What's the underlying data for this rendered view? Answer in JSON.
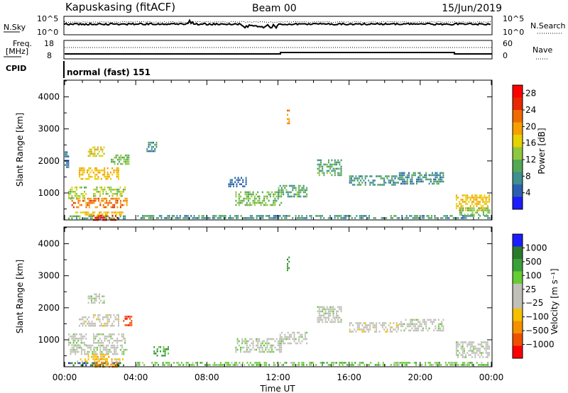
{
  "header": {
    "station": "Kapuskasing (fitACF)",
    "beam": "Beam 00",
    "date": "15/Jun/2019"
  },
  "panels": {
    "nsky_label": "N.Sky",
    "nsky_ticks": [
      "10^5",
      "10^0"
    ],
    "nsearch_label": "N.Search",
    "nsearch_ticks": [
      "10^5",
      "10^0"
    ],
    "freq_label": "Freq.",
    "freq_unit": "[MHz]",
    "freq_ticks": [
      "18",
      "8"
    ],
    "nave_label": "Nave",
    "nave_ticks": [
      "60",
      "0"
    ],
    "cpid_label": "CPID",
    "cpid_value": "normal (fast) 151"
  },
  "chart_data": [
    {
      "type": "heatmap",
      "quantity": "Power",
      "ylabel": "Slant Range [km]",
      "xlabel": "Time UT",
      "x_ticks": [
        "00:00",
        "04:00",
        "08:00",
        "12:00",
        "16:00",
        "20:00",
        "00:00"
      ],
      "x_range_hours": [
        0,
        24
      ],
      "ylim": [
        180,
        4500
      ],
      "y_ticks": [
        1000,
        2000,
        3000,
        4000
      ],
      "colorbar": {
        "label": "Power [dB]",
        "ticks": [
          "4",
          "8",
          "12",
          "16",
          "20",
          "24",
          "28"
        ],
        "range": [
          0,
          30
        ],
        "colors": [
          "#1c1cff",
          "#2d5fb0",
          "#3e8f8f",
          "#54a854",
          "#8fc840",
          "#e6d200",
          "#f5a000",
          "#f06a00",
          "#e82800",
          "#ff0000"
        ]
      },
      "regions": [
        {
          "t0": 0.2,
          "t1": 3.4,
          "r0": 180,
          "r1": 300,
          "v": 10
        },
        {
          "t0": 4.0,
          "t1": 23.9,
          "r0": 180,
          "r1": 310,
          "v": 8
        },
        {
          "t0": 1.6,
          "t1": 3.0,
          "r0": 180,
          "r1": 320,
          "v": 28
        },
        {
          "t0": 0.6,
          "t1": 3.3,
          "r0": 300,
          "r1": 420,
          "v": 18
        },
        {
          "t0": 0.3,
          "t1": 3.5,
          "r0": 550,
          "r1": 850,
          "v": 22
        },
        {
          "t0": 0.2,
          "t1": 1.2,
          "r0": 850,
          "r1": 1200,
          "v": 14
        },
        {
          "t0": 1.6,
          "t1": 3.4,
          "r0": 900,
          "r1": 1200,
          "v": 14
        },
        {
          "t0": 0.8,
          "t1": 3.0,
          "r0": 1450,
          "r1": 1800,
          "v": 18
        },
        {
          "t0": 1.3,
          "t1": 2.2,
          "r0": 2150,
          "r1": 2450,
          "v": 16
        },
        {
          "t0": 2.6,
          "t1": 3.6,
          "r0": 1900,
          "r1": 2200,
          "v": 12
        },
        {
          "t0": 0.0,
          "t1": 0.2,
          "r0": 1800,
          "r1": 2300,
          "v": 6
        },
        {
          "t0": 4.6,
          "t1": 5.2,
          "r0": 2300,
          "r1": 2600,
          "v": 8
        },
        {
          "t0": 9.6,
          "t1": 12.2,
          "r0": 650,
          "r1": 1050,
          "v": 12
        },
        {
          "t0": 12.0,
          "t1": 13.6,
          "r0": 900,
          "r1": 1250,
          "v": 10
        },
        {
          "t0": 14.2,
          "t1": 15.6,
          "r0": 1550,
          "r1": 2050,
          "v": 10
        },
        {
          "t0": 16.0,
          "t1": 18.8,
          "r0": 1250,
          "r1": 1550,
          "v": 8
        },
        {
          "t0": 18.8,
          "t1": 21.3,
          "r0": 1300,
          "r1": 1650,
          "v": 8
        },
        {
          "t0": 9.2,
          "t1": 10.2,
          "r0": 1200,
          "r1": 1500,
          "v": 6
        },
        {
          "t0": 22.0,
          "t1": 23.9,
          "r0": 450,
          "r1": 950,
          "v": 18
        },
        {
          "t0": 22.2,
          "t1": 23.9,
          "r0": 300,
          "r1": 550,
          "v": 12
        },
        {
          "t0": 12.5,
          "t1": 12.6,
          "r0": 3200,
          "r1": 3600,
          "v": 20
        }
      ]
    },
    {
      "type": "heatmap",
      "quantity": "Velocity",
      "ylabel": "Slant Range [km]",
      "xlabel": "Time UT",
      "x_ticks": [
        "00:00",
        "04:00",
        "08:00",
        "12:00",
        "16:00",
        "20:00",
        "00:00"
      ],
      "x_range_hours": [
        0,
        24
      ],
      "ylim": [
        180,
        4500
      ],
      "y_ticks": [
        1000,
        2000,
        3000,
        4000
      ],
      "colorbar": {
        "label": "Velocity [m s⁻¹]",
        "ticks": [
          "1000",
          "500",
          "100",
          "25",
          "−25",
          "−100",
          "−500",
          "−1000"
        ],
        "colors": [
          "#1c1cff",
          "#2b7a2b",
          "#3aa03a",
          "#66cc33",
          "#c0c0b8",
          "#c0c0b8",
          "#f5c000",
          "#f59000",
          "#f05000",
          "#ff0000"
        ]
      },
      "regions": [
        {
          "t0": 0.2,
          "t1": 3.4,
          "r0": 180,
          "r1": 300,
          "v": 1
        },
        {
          "t0": 4.0,
          "t1": 23.9,
          "r0": 180,
          "r1": 310,
          "v": 3
        },
        {
          "t0": 1.6,
          "t1": 3.0,
          "r0": 180,
          "r1": 320,
          "v": 7
        },
        {
          "t0": 0.6,
          "t1": 3.3,
          "r0": 300,
          "r1": 420,
          "v": 6
        },
        {
          "t0": 0.3,
          "t1": 3.5,
          "r0": 550,
          "r1": 850,
          "v": 4
        },
        {
          "t0": 1.3,
          "t1": 2.5,
          "r0": 420,
          "r1": 560,
          "v": 6
        },
        {
          "t0": 0.2,
          "t1": 1.2,
          "r0": 850,
          "r1": 1200,
          "v": 4
        },
        {
          "t0": 1.6,
          "t1": 3.4,
          "r0": 900,
          "r1": 1200,
          "v": 4
        },
        {
          "t0": 0.8,
          "t1": 3.0,
          "r0": 1450,
          "r1": 1800,
          "v": 5
        },
        {
          "t0": 1.3,
          "t1": 2.2,
          "r0": 2150,
          "r1": 2450,
          "v": 4
        },
        {
          "t0": 3.2,
          "t1": 3.8,
          "r0": 1450,
          "r1": 1750,
          "v": 8
        },
        {
          "t0": 5.0,
          "t1": 5.8,
          "r0": 500,
          "r1": 800,
          "v": 2
        },
        {
          "t0": 9.6,
          "t1": 12.2,
          "r0": 650,
          "r1": 1050,
          "v": 4
        },
        {
          "t0": 12.0,
          "t1": 13.6,
          "r0": 900,
          "r1": 1250,
          "v": 4
        },
        {
          "t0": 14.2,
          "t1": 15.6,
          "r0": 1550,
          "r1": 2050,
          "v": 4
        },
        {
          "t0": 16.0,
          "t1": 18.8,
          "r0": 1250,
          "r1": 1550,
          "v": 5
        },
        {
          "t0": 18.8,
          "t1": 21.3,
          "r0": 1300,
          "r1": 1650,
          "v": 4
        },
        {
          "t0": 22.0,
          "t1": 23.9,
          "r0": 450,
          "r1": 950,
          "v": 4
        },
        {
          "t0": 12.5,
          "t1": 12.6,
          "r0": 3200,
          "r1": 3600,
          "v": 2
        }
      ]
    }
  ]
}
